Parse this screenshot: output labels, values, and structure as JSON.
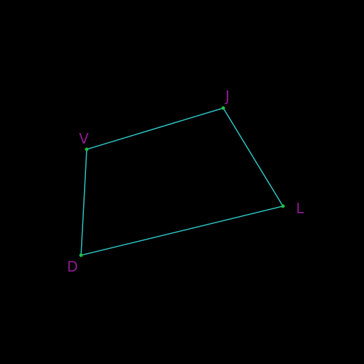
{
  "colors": {
    "background": "#000000",
    "edge": "#2ec4c4",
    "vertex": "#1fbf3f",
    "label": "#8e1b8e"
  },
  "vertices": [
    {
      "id": "J",
      "label": "J"
    },
    {
      "id": "L",
      "label": "L"
    },
    {
      "id": "D",
      "label": "D"
    },
    {
      "id": "V",
      "label": "V"
    }
  ],
  "edges": [
    {
      "from": "V",
      "to": "J"
    },
    {
      "from": "J",
      "to": "L"
    },
    {
      "from": "L",
      "to": "D"
    },
    {
      "from": "D",
      "to": "V"
    }
  ]
}
